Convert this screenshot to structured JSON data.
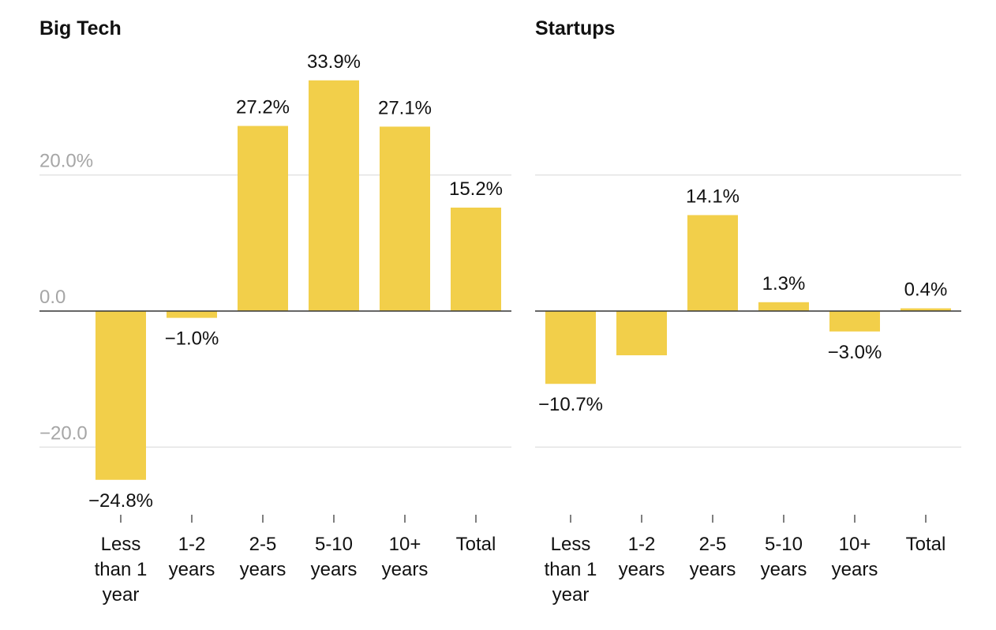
{
  "chart_data": [
    {
      "type": "bar",
      "title": "Big Tech",
      "categories": [
        "Less than 1 year",
        "1-2 years",
        "2-5 years",
        "5-10 years",
        "10+ years",
        "Total"
      ],
      "category_lines": [
        [
          "Less",
          "than 1",
          "year"
        ],
        [
          "1-2",
          "years"
        ],
        [
          "2-5",
          "years"
        ],
        [
          "5-10",
          "years"
        ],
        [
          "10+",
          "years"
        ],
        [
          "Total"
        ]
      ],
      "values": [
        -24.8,
        -1.0,
        27.2,
        33.9,
        27.1,
        15.2
      ],
      "value_labels": [
        "−24.8%",
        "−1.0%",
        "27.2%",
        "33.9%",
        "27.1%",
        "15.2%"
      ],
      "ylim": [
        -30,
        35
      ],
      "yticks": [
        -20,
        0,
        20
      ],
      "ytick_labels": [
        "−20.0",
        "0.0",
        "20.0%"
      ],
      "grid": true,
      "bar_color": "#f2cf4a"
    },
    {
      "type": "bar",
      "title": "Startups",
      "categories": [
        "Less than 1 year",
        "1-2 years",
        "2-5 years",
        "5-10 years",
        "10+ years",
        "Total"
      ],
      "category_lines": [
        [
          "Less",
          "than 1",
          "year"
        ],
        [
          "1-2",
          "years"
        ],
        [
          "2-5",
          "years"
        ],
        [
          "5-10",
          "years"
        ],
        [
          "10+",
          "years"
        ],
        [
          "Total"
        ]
      ],
      "values": [
        -10.7,
        -6.5,
        14.1,
        1.3,
        -3.0,
        0.4
      ],
      "value_labels": [
        "−10.7%",
        "",
        "14.1%",
        "1.3%",
        "−3.0%",
        "0.4%"
      ],
      "ylim": [
        -30,
        35
      ],
      "yticks": [
        -20,
        0,
        20
      ],
      "ytick_labels": [
        "",
        "",
        ""
      ],
      "grid": true,
      "bar_color": "#f2cf4a"
    }
  ]
}
